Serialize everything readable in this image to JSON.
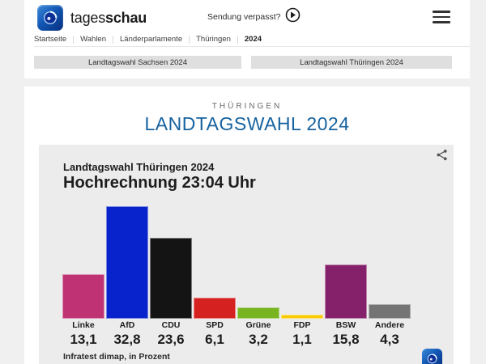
{
  "brand": {
    "word_regular": "tages",
    "word_bold": "schau",
    "logo_icon": "tagesschau-globe-logo"
  },
  "header": {
    "broadcast_label": "Sendung verpasst?",
    "play_icon": "play-circle-icon",
    "menu_icon": "hamburger-menu-icon"
  },
  "breadcrumb": {
    "items": [
      "Startseite",
      "Wahlen",
      "Länderparlamente",
      "Thüringen",
      "2024"
    ]
  },
  "nav_buttons": {
    "left": "Landtagswahl Sachsen 2024",
    "right": "Landtagswahl Thüringen 2024"
  },
  "page": {
    "kicker": "THÜRINGEN",
    "title": "LANDTAGSWAHL 2024",
    "title_color": "#16629f"
  },
  "chart_data": {
    "type": "bar",
    "title": "Landtagswahl Thüringen 2024",
    "subtitle": "Hochrechnung 23:04 Uhr",
    "source": "Infratest dimap, in Prozent",
    "unit": "Prozent",
    "categories": [
      "Linke",
      "AfD",
      "CDU",
      "SPD",
      "Grüne",
      "FDP",
      "BSW",
      "Andere"
    ],
    "values": [
      13.1,
      32.8,
      23.6,
      6.1,
      3.2,
      1.1,
      15.8,
      4.3
    ],
    "value_labels": [
      "13,1",
      "32,8",
      "23,6",
      "6,1",
      "3,2",
      "1,1",
      "15,8",
      "4,3"
    ],
    "bar_colors": [
      "#bf3375",
      "#0822cc",
      "#141414",
      "#d52120",
      "#77b41f",
      "#f7ca00",
      "#85206b",
      "#747474"
    ],
    "ylim": [
      0,
      34
    ],
    "grid": false,
    "legend": "none",
    "share_icon": "share-icon",
    "provider_icon": "ard-globe-logo"
  }
}
